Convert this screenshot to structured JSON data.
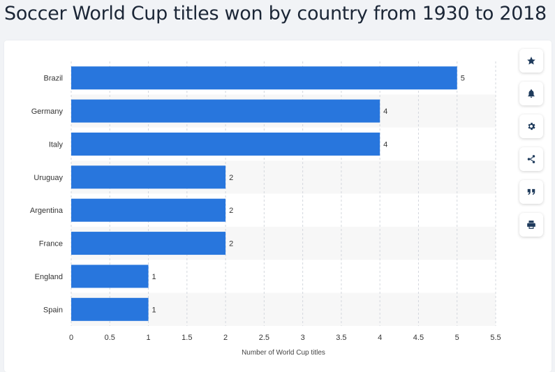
{
  "page": {
    "title": "Soccer World Cup titles won by country from 1930 to 2018"
  },
  "toolbar": {
    "buttons": [
      {
        "icon": "star-icon",
        "name": "favorite-button"
      },
      {
        "icon": "bell-icon",
        "name": "notification-button"
      },
      {
        "icon": "gear-icon",
        "name": "settings-button"
      },
      {
        "icon": "share-icon",
        "name": "share-button"
      },
      {
        "icon": "quote-icon",
        "name": "cite-button"
      },
      {
        "icon": "print-icon",
        "name": "print-button"
      }
    ]
  },
  "colors": {
    "bar": "#2876dd",
    "band": "#f7f7f7",
    "grid": "#d3d7dd",
    "text": "#333333",
    "icon": "#1f3b5c"
  },
  "chart_data": {
    "type": "bar",
    "orientation": "horizontal",
    "categories": [
      "Brazil",
      "Germany",
      "Italy",
      "Uruguay",
      "Argentina",
      "France",
      "England",
      "Spain"
    ],
    "values": [
      5,
      4,
      4,
      2,
      2,
      2,
      1,
      1
    ],
    "data_labels": [
      "5",
      "4",
      "4",
      "2",
      "2",
      "2",
      "1",
      "1"
    ],
    "xlabel": "Number of World Cup titles",
    "ylabel": "",
    "xlim": [
      0,
      5.5
    ],
    "x_ticks": [
      0,
      0.5,
      1,
      1.5,
      2,
      2.5,
      3,
      3.5,
      4,
      4.5,
      5,
      5.5
    ],
    "x_tick_labels": [
      "0",
      "0.5",
      "1",
      "1.5",
      "2",
      "2.5",
      "3",
      "3.5",
      "4",
      "4.5",
      "5",
      "5.5"
    ],
    "grid": true,
    "legend": "none"
  }
}
